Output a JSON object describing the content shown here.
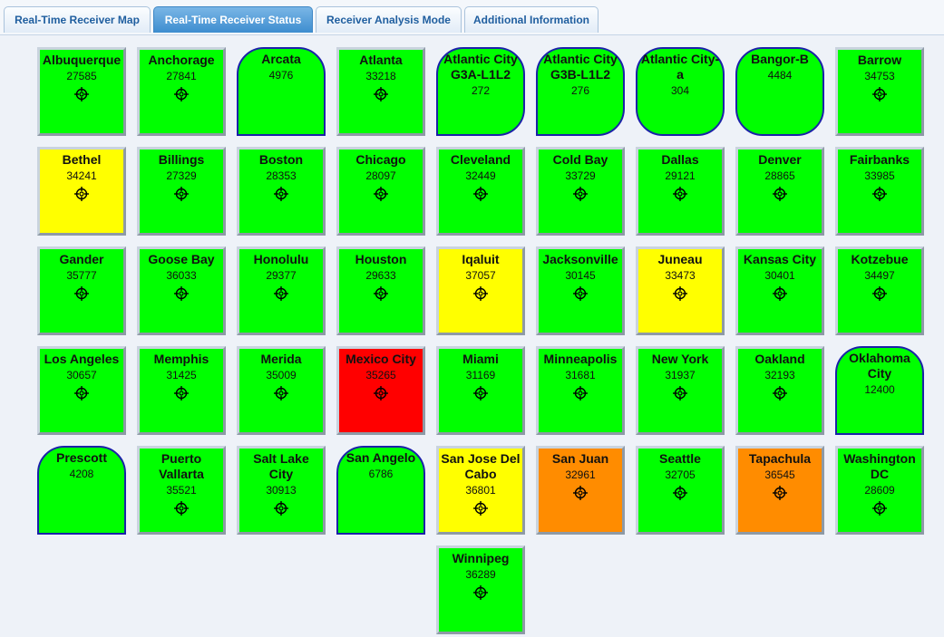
{
  "tabs": [
    {
      "label": "Real-Time Receiver Map",
      "active": false
    },
    {
      "label": "Real-Time Receiver Status",
      "active": true
    },
    {
      "label": "Receiver Analysis Mode",
      "active": false
    },
    {
      "label": "Additional Information",
      "active": false
    }
  ],
  "colors": {
    "green": "#00ff00",
    "yellow": "#ffff00",
    "red": "#ff0000",
    "orange": "#ff8c00",
    "rounded_border": "#1a22a8"
  },
  "receivers": [
    {
      "name": "Albuquerque",
      "id": "27585",
      "status": "green",
      "icon": "crosshair-icon"
    },
    {
      "name": "Anchorage",
      "id": "27841",
      "status": "green",
      "icon": "crosshair-icon"
    },
    {
      "name": "Arcata",
      "id": "4976",
      "status": "green",
      "shape": "rounded-top"
    },
    {
      "name": "Atlanta",
      "id": "33218",
      "status": "green",
      "icon": "crosshair-icon"
    },
    {
      "name": "Atlantic City G3A-L1L2",
      "id": "272",
      "status": "green",
      "shape": "rounded-bottom-right"
    },
    {
      "name": "Atlantic City G3B-L1L2",
      "id": "276",
      "status": "green",
      "shape": "rounded-bottom-right"
    },
    {
      "name": "Atlantic City-a",
      "id": "304",
      "status": "green",
      "shape": "rounded-all"
    },
    {
      "name": "Bangor-B",
      "id": "4484",
      "status": "green",
      "shape": "rounded-all"
    },
    {
      "name": "Barrow",
      "id": "34753",
      "status": "green",
      "icon": "crosshair-icon"
    },
    {
      "name": "Bethel",
      "id": "34241",
      "status": "yellow",
      "icon": "crosshair-icon"
    },
    {
      "name": "Billings",
      "id": "27329",
      "status": "green",
      "icon": "crosshair-icon"
    },
    {
      "name": "Boston",
      "id": "28353",
      "status": "green",
      "icon": "crosshair-icon"
    },
    {
      "name": "Chicago",
      "id": "28097",
      "status": "green",
      "icon": "crosshair-icon"
    },
    {
      "name": "Cleveland",
      "id": "32449",
      "status": "green",
      "icon": "crosshair-icon"
    },
    {
      "name": "Cold Bay",
      "id": "33729",
      "status": "green",
      "icon": "crosshair-icon"
    },
    {
      "name": "Dallas",
      "id": "29121",
      "status": "green",
      "icon": "crosshair-icon"
    },
    {
      "name": "Denver",
      "id": "28865",
      "status": "green",
      "icon": "crosshair-icon"
    },
    {
      "name": "Fairbanks",
      "id": "33985",
      "status": "green",
      "icon": "crosshair-icon"
    },
    {
      "name": "Gander",
      "id": "35777",
      "status": "green",
      "icon": "crosshair-icon"
    },
    {
      "name": "Goose Bay",
      "id": "36033",
      "status": "green",
      "icon": "crosshair-icon"
    },
    {
      "name": "Honolulu",
      "id": "29377",
      "status": "green",
      "icon": "crosshair-icon"
    },
    {
      "name": "Houston",
      "id": "29633",
      "status": "green",
      "icon": "crosshair-icon"
    },
    {
      "name": "Iqaluit",
      "id": "37057",
      "status": "yellow",
      "icon": "crosshair-icon"
    },
    {
      "name": "Jacksonville",
      "id": "30145",
      "status": "green",
      "icon": "crosshair-icon"
    },
    {
      "name": "Juneau",
      "id": "33473",
      "status": "yellow",
      "icon": "crosshair-icon"
    },
    {
      "name": "Kansas City",
      "id": "30401",
      "status": "green",
      "icon": "crosshair-icon"
    },
    {
      "name": "Kotzebue",
      "id": "34497",
      "status": "green",
      "icon": "crosshair-icon"
    },
    {
      "name": "Los Angeles",
      "id": "30657",
      "status": "green",
      "icon": "crosshair-icon"
    },
    {
      "name": "Memphis",
      "id": "31425",
      "status": "green",
      "icon": "crosshair-icon"
    },
    {
      "name": "Merida",
      "id": "35009",
      "status": "green",
      "icon": "crosshair-icon"
    },
    {
      "name": "Mexico City",
      "id": "35265",
      "status": "red",
      "icon": "crosshair-icon"
    },
    {
      "name": "Miami",
      "id": "31169",
      "status": "green",
      "icon": "crosshair-icon"
    },
    {
      "name": "Minneapolis",
      "id": "31681",
      "status": "green",
      "icon": "crosshair-icon"
    },
    {
      "name": "New York",
      "id": "31937",
      "status": "green",
      "icon": "crosshair-icon"
    },
    {
      "name": "Oakland",
      "id": "32193",
      "status": "green",
      "icon": "crosshair-icon"
    },
    {
      "name": "Oklahoma City",
      "id": "12400",
      "status": "green",
      "shape": "rounded-top"
    },
    {
      "name": "Prescott",
      "id": "4208",
      "status": "green",
      "shape": "rounded-top"
    },
    {
      "name": "Puerto Vallarta",
      "id": "35521",
      "status": "green",
      "icon": "crosshair-icon"
    },
    {
      "name": "Salt Lake City",
      "id": "30913",
      "status": "green",
      "icon": "crosshair-icon"
    },
    {
      "name": "San Angelo",
      "id": "6786",
      "status": "green",
      "shape": "rounded-top"
    },
    {
      "name": "San Jose Del Cabo",
      "id": "36801",
      "status": "yellow",
      "icon": "crosshair-icon"
    },
    {
      "name": "San Juan",
      "id": "32961",
      "status": "orange",
      "icon": "crosshair-icon"
    },
    {
      "name": "Seattle",
      "id": "32705",
      "status": "green",
      "icon": "crosshair-icon"
    },
    {
      "name": "Tapachula",
      "id": "36545",
      "status": "orange",
      "icon": "crosshair-icon"
    },
    {
      "name": "Washington DC",
      "id": "28609",
      "status": "green",
      "icon": "crosshair-icon"
    },
    {
      "name": "Winnipeg",
      "id": "36289",
      "status": "green",
      "icon": "crosshair-icon"
    }
  ]
}
